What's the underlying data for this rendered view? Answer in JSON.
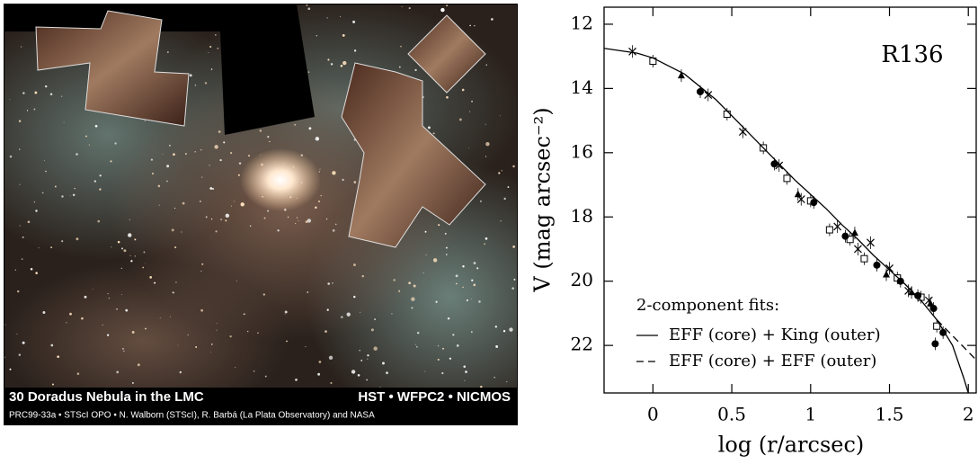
{
  "image": {
    "title": "30 Doradus Nebula in the LMC",
    "instruments": "HST • WFPC2 • NICMOS",
    "credit": "PRC99-33a • STScI OPO • N. Walborn (STScI), R. Barbá (La Plata Observatory) and NASA"
  },
  "chart_data": {
    "type": "scatter",
    "title": "R136",
    "x_label": "log (r/arcsec)",
    "y_label": "V (mag arcsec⁻²)",
    "xlim": [
      -0.31,
      2.05
    ],
    "ylim": [
      11.47,
      23.48
    ],
    "y_inverted": true,
    "xticks": [
      0,
      0.5,
      1,
      1.5,
      2
    ],
    "yticks": [
      12,
      14,
      16,
      18,
      20,
      22
    ],
    "legend_title": "2-component fits:",
    "series": [
      {
        "marker": "cross",
        "color": "#000000",
        "x": [
          -0.13,
          0.35,
          0.57,
          0.8,
          0.94,
          1.17,
          1.3,
          1.38,
          1.5,
          1.62,
          1.75
        ],
        "values": [
          12.85,
          14.2,
          15.35,
          16.4,
          17.45,
          18.3,
          19.0,
          18.8,
          19.6,
          20.3,
          20.6
        ]
      },
      {
        "marker": "square",
        "color": "#000000",
        "x": [
          0,
          0.47,
          0.7,
          0.85,
          1.0,
          1.12,
          1.25,
          1.34,
          1.55,
          1.7,
          1.8
        ],
        "values": [
          13.15,
          14.8,
          15.85,
          16.8,
          17.5,
          18.4,
          18.7,
          19.3,
          19.9,
          20.5,
          21.4
        ]
      },
      {
        "marker": "circle",
        "color": "#000000",
        "x": [
          0.3,
          0.77,
          1.02,
          1.22,
          1.42,
          1.57,
          1.68,
          1.78,
          1.84,
          1.79
        ],
        "values": [
          14.1,
          16.35,
          17.55,
          18.6,
          19.5,
          20.0,
          20.45,
          20.85,
          21.6,
          21.95
        ]
      },
      {
        "marker": "triangle",
        "color": "#000000",
        "x": [
          0.18,
          0.92,
          1.28,
          1.48,
          1.64,
          1.76
        ],
        "values": [
          13.6,
          17.3,
          18.5,
          19.8,
          20.35,
          20.7
        ]
      },
      {
        "name": "EFF (core) + King (outer)",
        "marker": "line",
        "dashed": false,
        "color": "#000000",
        "x": [
          -0.31,
          -0.1,
          0,
          0.2,
          0.4,
          0.6,
          0.8,
          0.9,
          1.0,
          1.1,
          1.2,
          1.3,
          1.4,
          1.5,
          1.6,
          1.7,
          1.8,
          1.9,
          1.97,
          2.0
        ],
        "values": [
          12.75,
          12.9,
          13.05,
          13.55,
          14.35,
          15.35,
          16.35,
          16.85,
          17.3,
          17.75,
          18.25,
          18.7,
          19.2,
          19.65,
          20.1,
          20.6,
          21.2,
          22.0,
          23.0,
          23.48
        ]
      },
      {
        "name": "EFF (core) + EFF (outer)",
        "marker": "line",
        "dashed": true,
        "color": "#000000",
        "x": [
          1.8,
          1.9,
          2.05
        ],
        "values": [
          21.2,
          21.7,
          22.45
        ]
      }
    ]
  }
}
